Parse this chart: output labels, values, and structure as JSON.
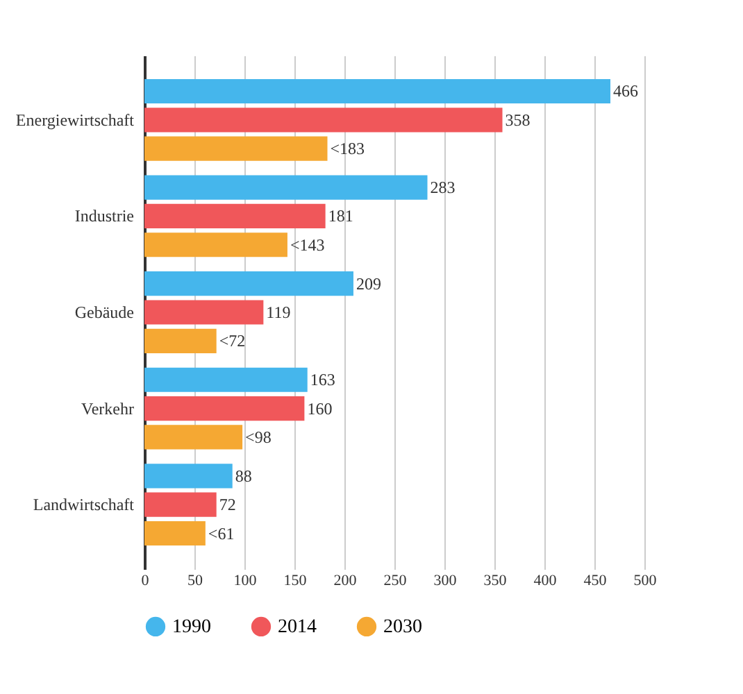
{
  "chart_data": {
    "type": "bar",
    "orientation": "horizontal",
    "categories": [
      "Energiewirtschaft",
      "Industrie",
      "Gebäude",
      "Verkehr",
      "Landwirtschaft"
    ],
    "series": [
      {
        "name": "1990",
        "color": "#45b6ec",
        "values": [
          466,
          283,
          209,
          163,
          88
        ],
        "value_labels": [
          "466",
          "283",
          "209",
          "163",
          "88"
        ]
      },
      {
        "name": "2014",
        "color": "#f0575a",
        "values": [
          358,
          181,
          119,
          160,
          72
        ],
        "value_labels": [
          "358",
          "181",
          "119",
          "160",
          "72"
        ]
      },
      {
        "name": "2030",
        "color": "#f5a833",
        "values": [
          183,
          143,
          72,
          98,
          61
        ],
        "value_labels": [
          "<183",
          "<143",
          "<72",
          "<98",
          "<61"
        ]
      }
    ],
    "xlim": [
      0,
      500
    ],
    "xticks": [
      0,
      50,
      100,
      150,
      200,
      250,
      300,
      350,
      400,
      450,
      500
    ],
    "grid": "x",
    "legend": "bottom"
  }
}
